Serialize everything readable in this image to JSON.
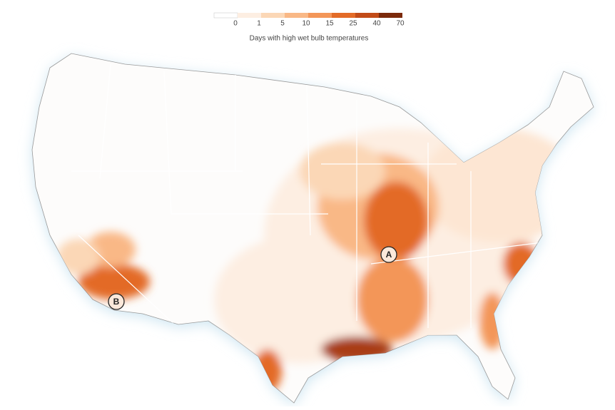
{
  "legend": {
    "title": "Days with high wet bulb temperatures",
    "colors": [
      "#ffffff",
      "#fdeee2",
      "#fbd7b6",
      "#f9b886",
      "#f39658",
      "#e36b27",
      "#c24b18",
      "#7b2a0b"
    ],
    "ticks": [
      0,
      1,
      5,
      10,
      15,
      25,
      40,
      70
    ]
  },
  "markers": [
    {
      "label": "A"
    },
    {
      "label": "B"
    }
  ]
}
